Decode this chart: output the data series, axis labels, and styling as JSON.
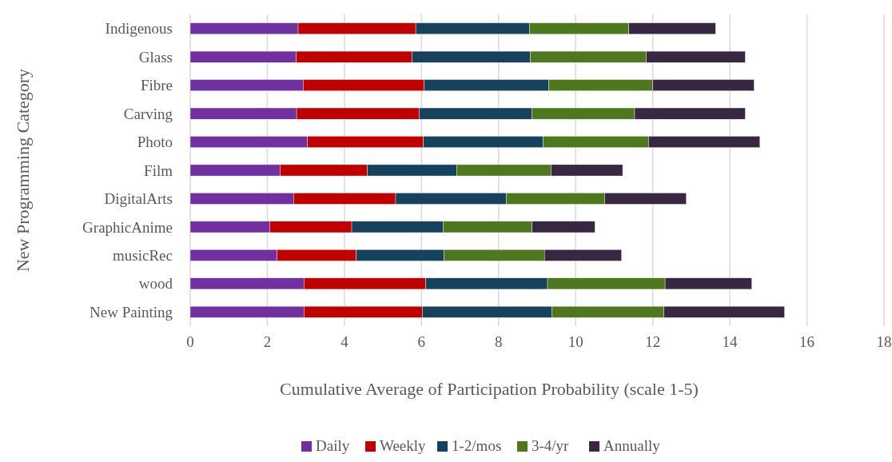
{
  "chart_data": {
    "type": "bar",
    "orientation": "horizontal",
    "stacked": true,
    "categories": [
      "Indigenous",
      "Glass",
      "Fibre",
      "Carving",
      "Photo",
      "Film",
      "DigitalArts",
      "GraphicAnime",
      "musicRec",
      "wood",
      "New Painting"
    ],
    "series": [
      {
        "name": "Daily",
        "color": "#7030a0",
        "values": [
          2.8,
          2.75,
          2.93,
          2.76,
          3.04,
          2.33,
          2.68,
          2.06,
          2.25,
          2.95,
          2.95
        ]
      },
      {
        "name": "Weekly",
        "color": "#c00000",
        "values": [
          3.05,
          3.0,
          3.14,
          3.18,
          3.01,
          2.27,
          2.65,
          2.13,
          2.06,
          3.16,
          3.07
        ]
      },
      {
        "name": "1-2/mos",
        "color": "#17425e",
        "values": [
          2.95,
          3.07,
          3.23,
          2.92,
          3.11,
          2.31,
          2.87,
          2.37,
          2.27,
          3.16,
          3.36
        ]
      },
      {
        "name": "3-4/yr",
        "color": "#4f771d",
        "values": [
          2.58,
          3.01,
          2.7,
          2.67,
          2.73,
          2.45,
          2.55,
          2.31,
          2.61,
          3.05,
          2.91
        ]
      },
      {
        "name": "Annually",
        "color": "#372741",
        "values": [
          2.25,
          2.57,
          2.63,
          2.87,
          2.89,
          1.86,
          2.12,
          1.63,
          2.0,
          2.25,
          3.13
        ]
      }
    ],
    "xlim": [
      0,
      18
    ],
    "xticks": [
      0,
      2,
      4,
      6,
      8,
      10,
      12,
      14,
      16,
      18
    ],
    "grid": "x",
    "legend": "bottom",
    "xlabel": "Cumulative Average of Participation Probability (scale 1-5)",
    "ylabel": "New Programming Category"
  }
}
